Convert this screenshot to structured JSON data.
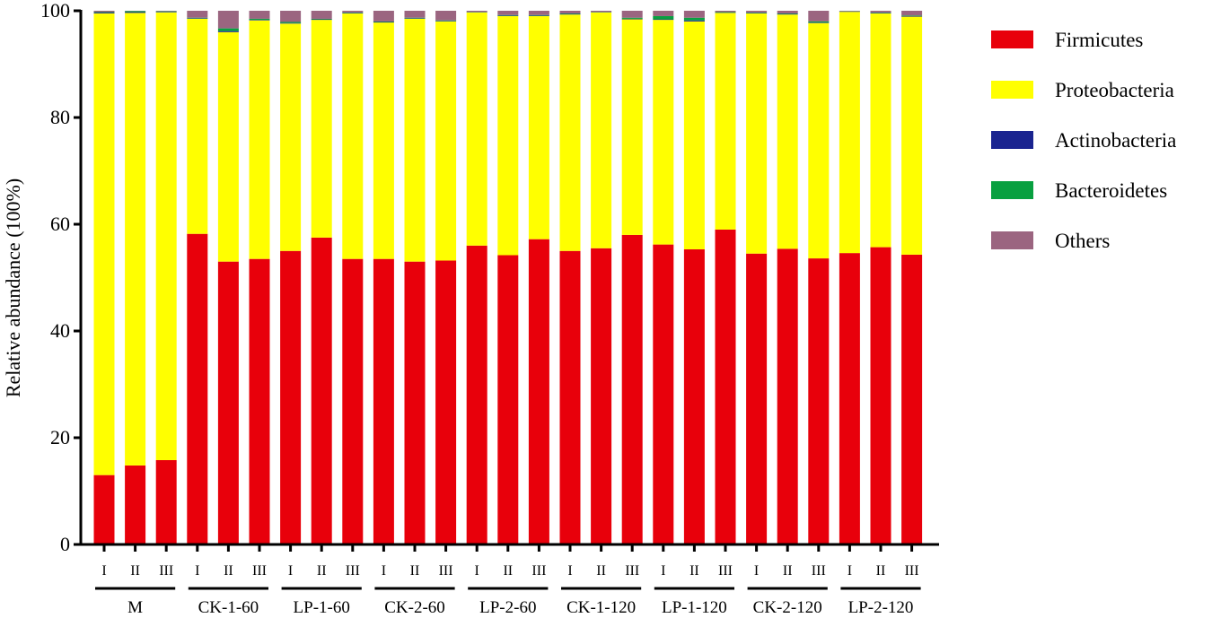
{
  "chart_data": {
    "type": "stacked-bar",
    "ylabel": "Relative abundance (100%)",
    "ylim": [
      0,
      100
    ],
    "yticks": [
      "0",
      "20",
      "40",
      "60",
      "80",
      "100"
    ],
    "grid": false,
    "legend_position": "right",
    "replicate_labels": [
      "I",
      "II",
      "III"
    ],
    "groups": [
      "M",
      "CK-1-60",
      "LP-1-60",
      "CK-2-60",
      "LP-2-60",
      "CK-1-120",
      "LP-1-120",
      "CK-2-120",
      "LP-2-120"
    ],
    "series": [
      {
        "name": "Firmicutes",
        "color": "#e8000b",
        "values": [
          13,
          14.8,
          15.8,
          58.2,
          53,
          53.5,
          55,
          57.5,
          53.5,
          53.5,
          53,
          53.2,
          56,
          54.2,
          57.2,
          55,
          55.5,
          58,
          56.2,
          55.3,
          59,
          54.5,
          55.4,
          53.6,
          54.6,
          55.7,
          54.3
        ]
      },
      {
        "name": "Proteobacteria",
        "color": "#ffff00",
        "values": [
          86.5,
          84.8,
          83.9,
          40.3,
          43,
          44.7,
          42.6,
          40.8,
          46,
          44.3,
          45.5,
          44.8,
          43.7,
          44.8,
          41.8,
          44.3,
          44.2,
          40.4,
          42.1,
          42.7,
          40.6,
          45,
          43.9,
          44.1,
          45.2,
          43.8,
          44.6
        ]
      },
      {
        "name": "Actinobacteria",
        "color": "#1a2490",
        "values": [
          0.15,
          0.15,
          0.1,
          0.1,
          0.2,
          0.1,
          0.1,
          0.1,
          0.1,
          0.1,
          0.1,
          0.1,
          0.05,
          0.1,
          0.1,
          0.1,
          0.05,
          0.1,
          0.1,
          0.2,
          0.05,
          0.1,
          0.1,
          0.1,
          0.05,
          0.1,
          0.1
        ]
      },
      {
        "name": "Bacteroidetes",
        "color": "#08a040",
        "values": [
          0.1,
          0.2,
          0.1,
          0.1,
          0.5,
          0.2,
          0.2,
          0.1,
          0.1,
          0.1,
          0.1,
          0.1,
          0.05,
          0.1,
          0.1,
          0.1,
          0.05,
          0.2,
          0.6,
          0.5,
          0.1,
          0.1,
          0.1,
          0.2,
          0.05,
          0.1,
          0.1
        ]
      },
      {
        "name": "Others",
        "color": "#9b6580",
        "values": [
          0.25,
          0.05,
          0.1,
          1.3,
          3.3,
          1.5,
          2.1,
          1.5,
          0.3,
          2,
          1.3,
          1.8,
          0.2,
          0.8,
          0.8,
          0.5,
          0.2,
          1.3,
          1,
          1.3,
          0.25,
          0.3,
          0.5,
          2,
          0.1,
          0.3,
          0.9
        ]
      }
    ]
  }
}
